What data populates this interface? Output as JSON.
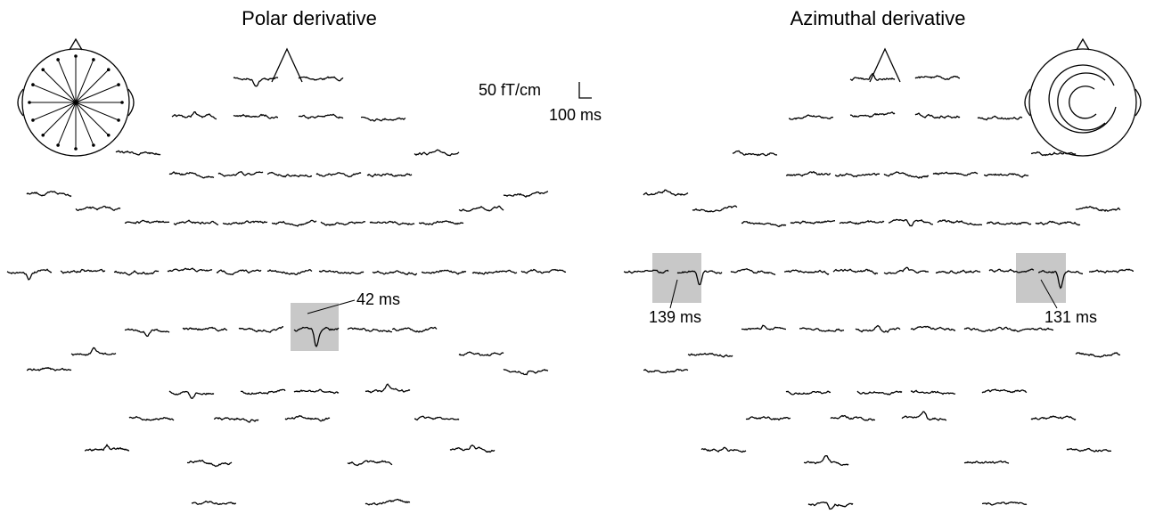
{
  "panels": [
    {
      "title": "Polar derivative",
      "annotations": [
        "42 ms"
      ]
    },
    {
      "title": "Azimuthal derivative",
      "annotations": [
        "139 ms",
        "131 ms"
      ]
    }
  ],
  "scale_bar": {
    "amplitude": "50 fT/cm",
    "time": "100 ms"
  }
}
